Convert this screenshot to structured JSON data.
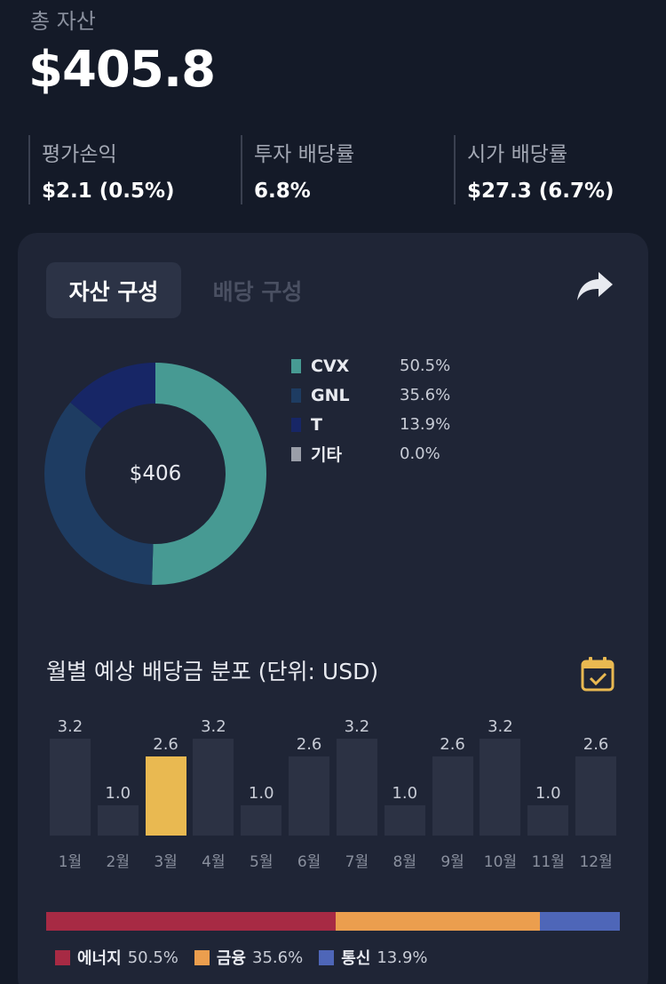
{
  "summary": {
    "total_label": "총 자산",
    "total_value": "$405.8",
    "stats": [
      {
        "label": "평가손익",
        "value": "$2.1 (0.5%)"
      },
      {
        "label": "투자 배당률",
        "value": "6.8%"
      },
      {
        "label": "시가 배당률",
        "value": "$27.3 (6.7%)"
      }
    ]
  },
  "tabs": {
    "active": "자산 구성",
    "inactive": "배당 구성"
  },
  "composition": {
    "center_label": "$406",
    "items": [
      {
        "name": "CVX",
        "pct": "50.5%",
        "value": 50.5,
        "color": "#479a93"
      },
      {
        "name": "GNL",
        "pct": "35.6%",
        "value": 35.6,
        "color": "#1e3c62"
      },
      {
        "name": "T",
        "pct": "13.9%",
        "value": 13.9,
        "color": "#172666"
      },
      {
        "name": "기타",
        "pct": "0.0%",
        "value": 0.0,
        "color": "#9a9ea8"
      }
    ]
  },
  "dividend_chart": {
    "title": "월별 예상 배당금 분포 (단위: USD)",
    "highlight_color": "#e9b951",
    "bar_color": "#2c3244"
  },
  "chart_data": {
    "type": "bar",
    "categories": [
      "1월",
      "2월",
      "3월",
      "4월",
      "5월",
      "6월",
      "7월",
      "8월",
      "9월",
      "10월",
      "11월",
      "12월"
    ],
    "values": [
      3.2,
      1.0,
      2.6,
      3.2,
      1.0,
      2.6,
      3.2,
      1.0,
      2.6,
      3.2,
      1.0,
      2.6
    ],
    "labels": [
      "3.2",
      "1.0",
      "2.6",
      "3.2",
      "1.0",
      "2.6",
      "3.2",
      "1.0",
      "2.6",
      "3.2",
      "1.0",
      "2.6"
    ],
    "highlight_index": 2,
    "ylim": [
      0,
      3.2
    ]
  },
  "sectors": [
    {
      "name": "에너지",
      "pct": "50.5%",
      "value": 50.5,
      "color": "#a72a44"
    },
    {
      "name": "금융",
      "pct": "35.6%",
      "value": 35.6,
      "color": "#eb9e4e"
    },
    {
      "name": "통신",
      "pct": "13.9%",
      "value": 13.9,
      "color": "#4e66b8"
    }
  ]
}
